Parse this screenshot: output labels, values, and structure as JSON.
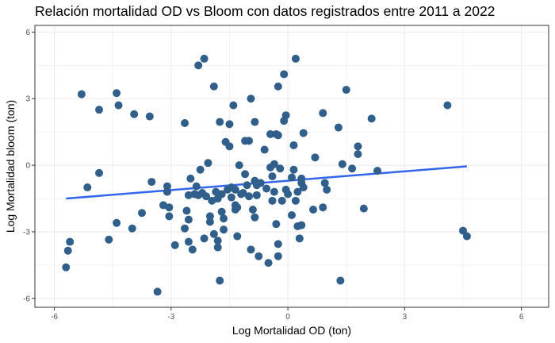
{
  "chart_data": {
    "type": "scatter",
    "title": "Relación mortalidad OD vs Bloom con datos registrados entre 2011 a 2022",
    "xlabel": "Log Mortalidad OD (ton)",
    "ylabel": "Log Mortalidad bloom (ton)",
    "xlim": [
      -6.5,
      6.7
    ],
    "ylim": [
      -6.4,
      6.3
    ],
    "xticks": [
      -6,
      -3,
      0,
      3,
      6
    ],
    "yticks": [
      -6,
      -3,
      0,
      3,
      6
    ],
    "xtick_labels": [
      "-6",
      "-3",
      "0",
      "3",
      "6"
    ],
    "ytick_labels": [
      "-6",
      "-3",
      "0",
      "3",
      "6"
    ],
    "grid": true,
    "legend": "none",
    "colors": {
      "points": "#2f5f8a",
      "trend": "#3366ee",
      "panel_border": "#333333",
      "grid": "#ebebeb"
    },
    "trend_line": {
      "x": [
        -5.7,
        4.6
      ],
      "y": [
        -1.5,
        -0.05
      ]
    },
    "points": [
      [
        -5.7,
        -4.6
      ],
      [
        -5.65,
        -3.85
      ],
      [
        -5.6,
        -3.45
      ],
      [
        -5.3,
        3.2
      ],
      [
        -5.15,
        -1.0
      ],
      [
        -4.85,
        2.5
      ],
      [
        -4.85,
        -0.35
      ],
      [
        -4.6,
        -3.35
      ],
      [
        -4.4,
        3.25
      ],
      [
        -4.35,
        2.7
      ],
      [
        -4.4,
        -2.6
      ],
      [
        -3.95,
        2.3
      ],
      [
        -4.0,
        -2.85
      ],
      [
        -3.75,
        -2.15
      ],
      [
        -3.55,
        2.2
      ],
      [
        -3.5,
        -0.75
      ],
      [
        -3.35,
        -5.7
      ],
      [
        -3.2,
        -1.8
      ],
      [
        -3.1,
        -0.95
      ],
      [
        -3.1,
        -1.2
      ],
      [
        -3.05,
        -1.9
      ],
      [
        -3.05,
        -2.3
      ],
      [
        -2.9,
        -3.6
      ],
      [
        -2.65,
        1.9
      ],
      [
        -2.65,
        -2.85
      ],
      [
        -2.6,
        -2.05
      ],
      [
        -2.55,
        -1.35
      ],
      [
        -2.55,
        -2.45
      ],
      [
        -2.55,
        -3.45
      ],
      [
        -2.5,
        -0.6
      ],
      [
        -2.45,
        -3.8
      ],
      [
        -2.4,
        -1.3
      ],
      [
        -2.35,
        -0.95
      ],
      [
        -2.3,
        -1.35
      ],
      [
        -2.3,
        4.5
      ],
      [
        -2.25,
        -0.2
      ],
      [
        -2.2,
        -1.25
      ],
      [
        -2.15,
        4.8
      ],
      [
        -2.15,
        -3.3
      ],
      [
        -2.1,
        -1.4
      ],
      [
        -2.05,
        0.1
      ],
      [
        -2.0,
        -2.55
      ],
      [
        -2.0,
        -2.3
      ],
      [
        -1.95,
        -1.6
      ],
      [
        -1.9,
        -3.1
      ],
      [
        -1.9,
        3.55
      ],
      [
        -1.85,
        -1.2
      ],
      [
        -1.8,
        -1.5
      ],
      [
        -1.8,
        -3.4
      ],
      [
        -1.8,
        -3.7
      ],
      [
        -1.75,
        1.95
      ],
      [
        -1.75,
        -5.2
      ],
      [
        -1.7,
        -1.3
      ],
      [
        -1.7,
        -2.1
      ],
      [
        -1.65,
        -2.9
      ],
      [
        -1.65,
        -2.4
      ],
      [
        -1.6,
        1.05
      ],
      [
        -1.55,
        -1.1
      ],
      [
        -1.5,
        1.85
      ],
      [
        -1.5,
        0.85
      ],
      [
        -1.45,
        -1.45
      ],
      [
        -1.45,
        -1.0
      ],
      [
        -1.4,
        2.7
      ],
      [
        -1.35,
        -1.1
      ],
      [
        -1.35,
        -1.8
      ],
      [
        -1.35,
        -2.0
      ],
      [
        -1.3,
        -3.2
      ],
      [
        -1.3,
        -1.9
      ],
      [
        -1.25,
        0.0
      ],
      [
        -1.2,
        -1.3
      ],
      [
        -1.15,
        -1.25
      ],
      [
        -1.1,
        -0.4
      ],
      [
        -1.1,
        1.1
      ],
      [
        -1.05,
        -0.9
      ],
      [
        -1.0,
        1.1
      ],
      [
        -1.0,
        -1.4
      ],
      [
        -0.95,
        3.0
      ],
      [
        -0.95,
        -3.8
      ],
      [
        -0.9,
        -2.0
      ],
      [
        -0.85,
        -2.35
      ],
      [
        -0.85,
        1.95
      ],
      [
        -0.85,
        -0.7
      ],
      [
        -0.8,
        -1.35
      ],
      [
        -0.8,
        -0.9
      ],
      [
        -0.75,
        -4.1
      ],
      [
        -0.7,
        -0.8
      ],
      [
        -0.6,
        0.7
      ],
      [
        -0.55,
        -1.05
      ],
      [
        -0.5,
        -4.4
      ],
      [
        -0.45,
        1.4
      ],
      [
        -0.45,
        -0.1
      ],
      [
        -0.4,
        -0.5
      ],
      [
        -0.4,
        -1.6
      ],
      [
        -0.35,
        0.05
      ],
      [
        -0.35,
        -1.2
      ],
      [
        -0.3,
        1.4
      ],
      [
        -0.3,
        -2.65
      ],
      [
        -0.25,
        3.55
      ],
      [
        -0.25,
        1.35
      ],
      [
        -0.25,
        -3.55
      ],
      [
        -0.25,
        -4.1
      ],
      [
        -0.2,
        -0.15
      ],
      [
        -0.15,
        -1.6
      ],
      [
        -0.1,
        4.1
      ],
      [
        -0.1,
        2.0
      ],
      [
        -0.05,
        2.25
      ],
      [
        -0.05,
        -1.1
      ],
      [
        0.0,
        -1.3
      ],
      [
        0.1,
        -0.55
      ],
      [
        0.1,
        -2.25
      ],
      [
        0.15,
        0.9
      ],
      [
        0.15,
        -0.2
      ],
      [
        0.2,
        4.8
      ],
      [
        0.2,
        -1.6
      ],
      [
        0.25,
        -1.2
      ],
      [
        0.25,
        -2.75
      ],
      [
        0.3,
        -3.3
      ],
      [
        0.35,
        -0.6
      ],
      [
        0.35,
        -0.8
      ],
      [
        0.35,
        -2.7
      ],
      [
        0.4,
        -1.0
      ],
      [
        0.4,
        1.45
      ],
      [
        0.65,
        -2.0
      ],
      [
        0.7,
        0.35
      ],
      [
        0.9,
        2.35
      ],
      [
        0.9,
        -1.9
      ],
      [
        0.95,
        -0.8
      ],
      [
        1.0,
        -1.1
      ],
      [
        1.3,
        1.7
      ],
      [
        1.35,
        -5.2
      ],
      [
        1.4,
        0.05
      ],
      [
        1.5,
        3.4
      ],
      [
        1.65,
        -0.15
      ],
      [
        1.8,
        0.85
      ],
      [
        1.8,
        0.5
      ],
      [
        1.95,
        -1.95
      ],
      [
        2.15,
        2.1
      ],
      [
        2.3,
        -0.25
      ],
      [
        4.1,
        2.7
      ],
      [
        4.5,
        -2.95
      ],
      [
        4.6,
        -3.2
      ]
    ]
  }
}
